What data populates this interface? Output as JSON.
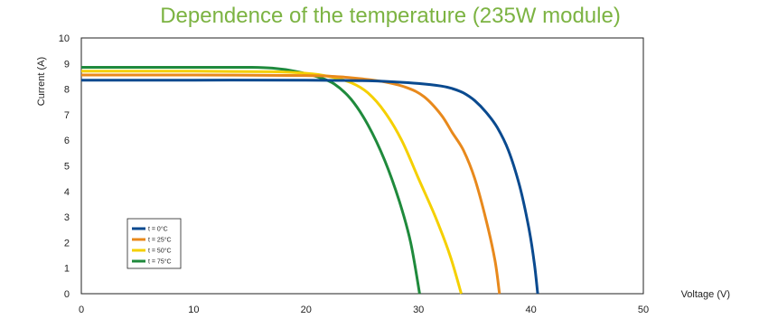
{
  "chart_data": {
    "type": "line",
    "title": "Dependence of the temperature (235W module)",
    "xlabel": "Voltage (V)",
    "ylabel": "Current (A)",
    "xlim": [
      0,
      50
    ],
    "ylim": [
      0,
      10
    ],
    "xticks": [
      "0",
      "10",
      "20",
      "30",
      "40",
      "50"
    ],
    "yticks": [
      "0",
      "1",
      "2",
      "3",
      "4",
      "5",
      "6",
      "7",
      "8",
      "9",
      "10"
    ],
    "grid": false,
    "legend_position": "bottom-left",
    "series": [
      {
        "name": "t = 0°C",
        "color": "#0a4a8f",
        "points": [
          [
            0,
            8.35
          ],
          [
            10,
            8.35
          ],
          [
            20,
            8.35
          ],
          [
            25,
            8.33
          ],
          [
            28,
            8.28
          ],
          [
            30,
            8.22
          ],
          [
            32,
            8.12
          ],
          [
            33,
            8.02
          ],
          [
            34,
            7.85
          ],
          [
            35,
            7.55
          ],
          [
            36,
            7.1
          ],
          [
            37,
            6.5
          ],
          [
            38,
            5.6
          ],
          [
            39,
            4.2
          ],
          [
            39.8,
            2.6
          ],
          [
            40.3,
            1.2
          ],
          [
            40.6,
            0
          ]
        ]
      },
      {
        "name": "t = 25°C",
        "color": "#e8891c",
        "points": [
          [
            0,
            8.55
          ],
          [
            10,
            8.55
          ],
          [
            20,
            8.53
          ],
          [
            23,
            8.48
          ],
          [
            25,
            8.4
          ],
          [
            27,
            8.28
          ],
          [
            29,
            8.05
          ],
          [
            30.5,
            7.7
          ],
          [
            32,
            7.0
          ],
          [
            33,
            6.3
          ],
          [
            34,
            5.6
          ],
          [
            35,
            4.5
          ],
          [
            36,
            2.9
          ],
          [
            36.8,
            1.3
          ],
          [
            37.2,
            0
          ]
        ]
      },
      {
        "name": "t = 50°C",
        "color": "#f5d000",
        "points": [
          [
            0,
            8.7
          ],
          [
            10,
            8.7
          ],
          [
            17,
            8.68
          ],
          [
            20,
            8.62
          ],
          [
            22,
            8.5
          ],
          [
            24,
            8.25
          ],
          [
            25.5,
            7.85
          ],
          [
            27,
            7.1
          ],
          [
            28.5,
            6.0
          ],
          [
            30,
            4.5
          ],
          [
            31.5,
            3.0
          ],
          [
            32.8,
            1.5
          ],
          [
            33.8,
            0
          ]
        ]
      },
      {
        "name": "t = 75°C",
        "color": "#1f8a3c",
        "points": [
          [
            0,
            8.85
          ],
          [
            10,
            8.85
          ],
          [
            15,
            8.85
          ],
          [
            17,
            8.82
          ],
          [
            19,
            8.7
          ],
          [
            21,
            8.48
          ],
          [
            22.5,
            8.2
          ],
          [
            24,
            7.6
          ],
          [
            25.5,
            6.6
          ],
          [
            27,
            5.2
          ],
          [
            28.3,
            3.6
          ],
          [
            29.3,
            2.0
          ],
          [
            30.1,
            0
          ]
        ]
      }
    ]
  }
}
